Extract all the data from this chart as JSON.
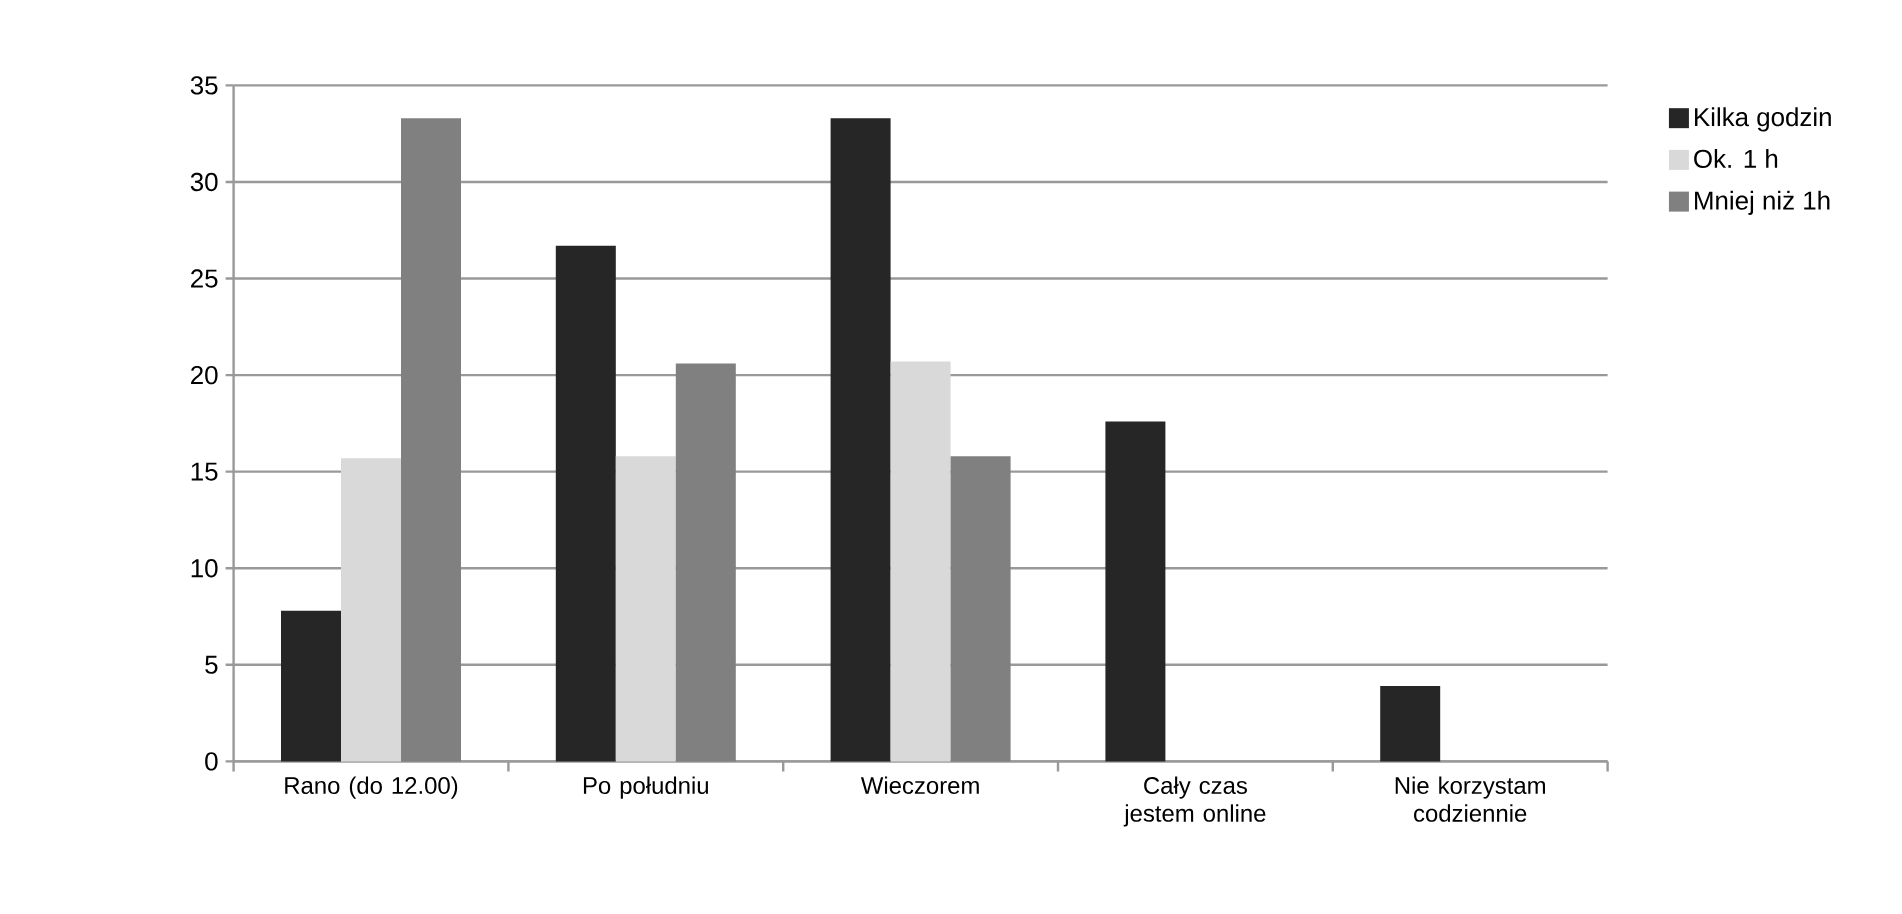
{
  "chart_data": {
    "type": "bar",
    "categories": [
      "Rano (do 12.00)",
      "Po południu",
      "Wieczorem",
      "Cały czas jestem online",
      "Nie korzystam codziennie"
    ],
    "series": [
      {
        "name": "Kilka godzin",
        "color": "#262626",
        "values": [
          7.8,
          26.7,
          33.3,
          17.6,
          3.9
        ]
      },
      {
        "name": "Ok. 1 h",
        "color": "#d9d9d9",
        "values": [
          15.7,
          15.8,
          20.7,
          null,
          null
        ]
      },
      {
        "name": "Mniej niż 1h",
        "color": "#808080",
        "values": [
          33.3,
          20.6,
          15.8,
          null,
          null
        ]
      }
    ],
    "ylim": [
      0,
      35
    ],
    "yticks": [
      0,
      5,
      10,
      15,
      20,
      25,
      30,
      35
    ],
    "grid": "y",
    "legend": "top right"
  }
}
